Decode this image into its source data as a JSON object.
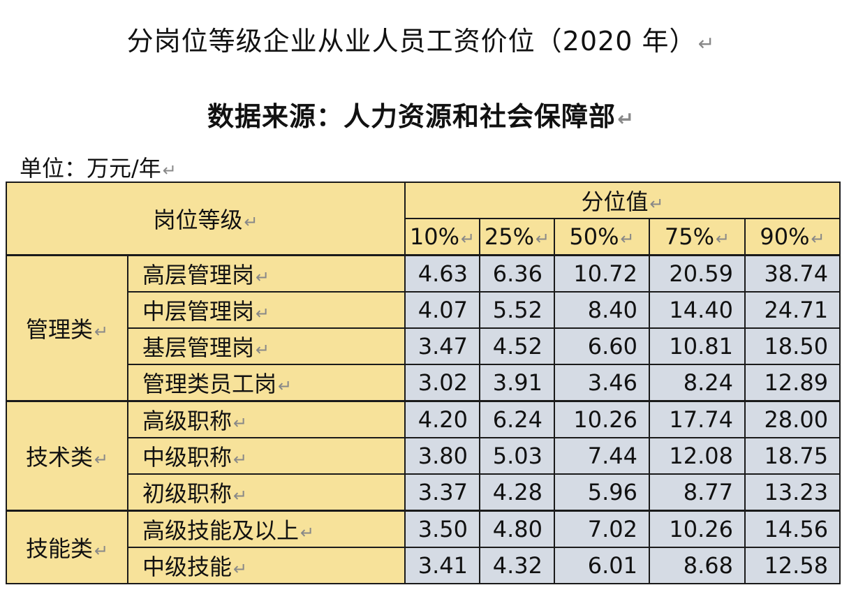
{
  "title": "分岗位等级企业从业人员工资价位（2020 年）",
  "source": "数据来源：人力资源和社会保障部",
  "unit": "单位：万元/年",
  "return_mark": "↵",
  "table": {
    "header_level": "岗位等级",
    "header_percentile": "分位值",
    "percentiles": [
      "10%",
      "25%",
      "50%",
      "75%",
      "90%"
    ],
    "groups": [
      {
        "category": "管理类",
        "rows": [
          {
            "position": "高层管理岗",
            "values": [
              "4.63",
              "6.36",
              "10.72",
              "20.59",
              "38.74"
            ]
          },
          {
            "position": "中层管理岗",
            "values": [
              "4.07",
              "5.52",
              "8.40",
              "14.40",
              "24.71"
            ]
          },
          {
            "position": "基层管理岗",
            "values": [
              "3.47",
              "4.52",
              "6.60",
              "10.81",
              "18.50"
            ]
          },
          {
            "position": "管理类员工岗",
            "values": [
              "3.02",
              "3.91",
              "3.46",
              "8.24",
              "12.89"
            ]
          }
        ]
      },
      {
        "category": "技术类",
        "rows": [
          {
            "position": "高级职称",
            "values": [
              "4.20",
              "6.24",
              "10.26",
              "17.74",
              "28.00"
            ]
          },
          {
            "position": "中级职称",
            "values": [
              "3.80",
              "5.03",
              "7.44",
              "12.08",
              "18.75"
            ]
          },
          {
            "position": "初级职称",
            "values": [
              "3.37",
              "4.28",
              "5.96",
              "8.77",
              "13.23"
            ]
          }
        ]
      },
      {
        "category": "技能类",
        "rows": [
          {
            "position": "高级技能及以上",
            "values": [
              "3.50",
              "4.80",
              "7.02",
              "10.26",
              "14.56"
            ]
          },
          {
            "position": "中级技能",
            "values": [
              "3.41",
              "4.32",
              "6.01",
              "8.68",
              "12.58"
            ]
          }
        ]
      }
    ]
  },
  "colors": {
    "header_fill": "#f7e29a",
    "value_fill": "#d5dbe4",
    "border": "#1a1a1a"
  }
}
